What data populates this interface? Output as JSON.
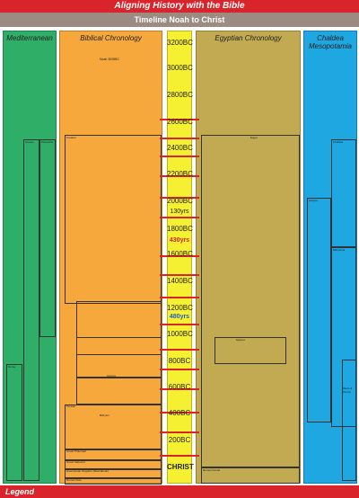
{
  "header": {
    "title": "Aligning History with the Bible",
    "subtitle": "Timeline Noah to Christ"
  },
  "footer": {
    "label": "Legend"
  },
  "columns": {
    "mediterranean": {
      "title_line1": "Mediterranean",
      "title_line2": ""
    },
    "biblical": {
      "title_line1": "Biblical Chronology",
      "title_line2": ""
    },
    "egyptian": {
      "title_line1": "Egyptian Chronology",
      "title_line2": ""
    },
    "chaldea": {
      "title_line1": "Chaldea",
      "title_line2": "Mesopotamia"
    }
  },
  "years": [
    "3200BC",
    "3000BC",
    "2800BC",
    "2600BC",
    "2400BC",
    "2200BC",
    "2000BC",
    "1800BC",
    "1600BC",
    "1400BC",
    "1200BC",
    "1000BC",
    "800BC",
    "600BC",
    "400BC",
    "200BC",
    "CHRIST"
  ],
  "spans": {
    "s1": "130yrs",
    "s2": "430yrs",
    "s3": "480yrs"
  },
  "biblical_labels": {
    "noah": "Noah 3008BC",
    "canaan": "Canaan",
    "persian": "Persian",
    "greek_ptolemaic": "Greek Ptolemaic",
    "greek_seleucid": "Greek Seleucid",
    "hasmonean": "Hasmonean Kingdom (Maccabean)",
    "roman_rule": "Roman Rule",
    "babylon": "Babylon",
    "assyria": "Assyria"
  },
  "med_labels": {
    "greece": "Greece",
    "rome": "Rome",
    "phoenicia": "Phoenicia"
  },
  "egypt_labels": {
    "egypt": "Egypt",
    "hyksos": "Hyksos",
    "roman_period": "Roman Period"
  },
  "chaldea_labels": {
    "chaldea": "Chaldea",
    "assyria": "Assyria",
    "babylonia": "Babylonia",
    "medo_persia": "Medo & Persia"
  }
}
